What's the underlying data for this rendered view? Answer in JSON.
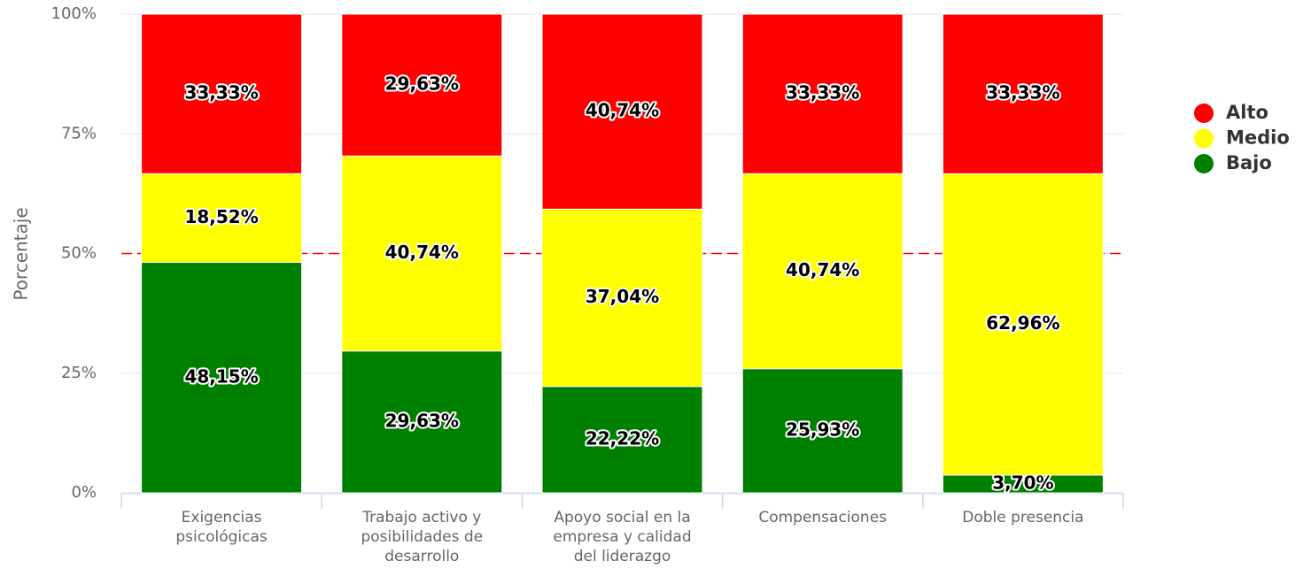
{
  "chart_data": {
    "type": "stacked_bar",
    "y_label": "Porcentaje",
    "categories": [
      "Exigencias psicológicas",
      "Trabajo activo y posibilidades de desarrollo",
      "Apoyo social en la empresa y calidad del liderazgo",
      "Compensaciones",
      "Doble presencia"
    ],
    "series": [
      {
        "name": "Bajo",
        "color": "#008000",
        "values": [
          48.15,
          29.63,
          22.22,
          25.93,
          3.7
        ],
        "value_labels": [
          "48,15%",
          "29,63%",
          "22,22%",
          "25,93%",
          "3,70%"
        ]
      },
      {
        "name": "Medio",
        "color": "#ffff00",
        "values": [
          18.52,
          40.74,
          37.04,
          40.74,
          62.96
        ],
        "value_labels": [
          "18,52%",
          "40,74%",
          "37,04%",
          "40,74%",
          "62,96%"
        ]
      },
      {
        "name": "Alto",
        "color": "#ff0000",
        "values": [
          33.33,
          29.63,
          40.74,
          33.33,
          33.33
        ],
        "value_labels": [
          "33,33%",
          "29,63%",
          "40,74%",
          "33,33%",
          "33,33%"
        ]
      }
    ],
    "ylim": [
      0,
      100
    ],
    "yticks": [
      {
        "value": 0,
        "label": "0%"
      },
      {
        "value": 25,
        "label": "25%"
      },
      {
        "value": 50,
        "label": "50%"
      },
      {
        "value": 75,
        "label": "75%"
      },
      {
        "value": 100,
        "label": "100%"
      }
    ],
    "grid": true,
    "reference_line": {
      "value": 50,
      "color": "#ff0000"
    },
    "legend": "right"
  }
}
